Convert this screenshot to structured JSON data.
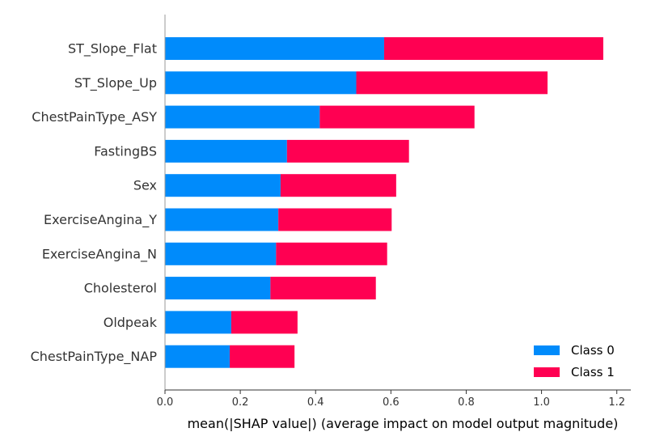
{
  "chart_data": {
    "type": "bar",
    "orientation": "horizontal",
    "stacked": true,
    "title": "",
    "xlabel": "mean(|SHAP value|) (average impact on model output magnitude)",
    "ylabel": "",
    "xlim": [
      0,
      1.22
    ],
    "xticks": [
      "0.0",
      "0.2",
      "0.4",
      "0.6",
      "0.8",
      "1.0",
      "1.2"
    ],
    "categories": [
      "ST_Slope_Flat",
      "ST_Slope_Up",
      "ChestPainType_ASY",
      "FastingBS",
      "Sex",
      "ExerciseAngina_Y",
      "ExerciseAngina_N",
      "Cholesterol",
      "Oldpeak",
      "ChestPainType_NAP"
    ],
    "series": [
      {
        "name": "Class 0",
        "color": "#008bfb",
        "values": [
          0.582,
          0.508,
          0.411,
          0.324,
          0.307,
          0.301,
          0.295,
          0.28,
          0.176,
          0.172
        ]
      },
      {
        "name": "Class 1",
        "color": "#ff0052",
        "values": [
          0.582,
          0.508,
          0.411,
          0.324,
          0.307,
          0.301,
          0.295,
          0.28,
          0.176,
          0.172
        ]
      }
    ],
    "grid": false,
    "legend_position": "bottom-right"
  }
}
